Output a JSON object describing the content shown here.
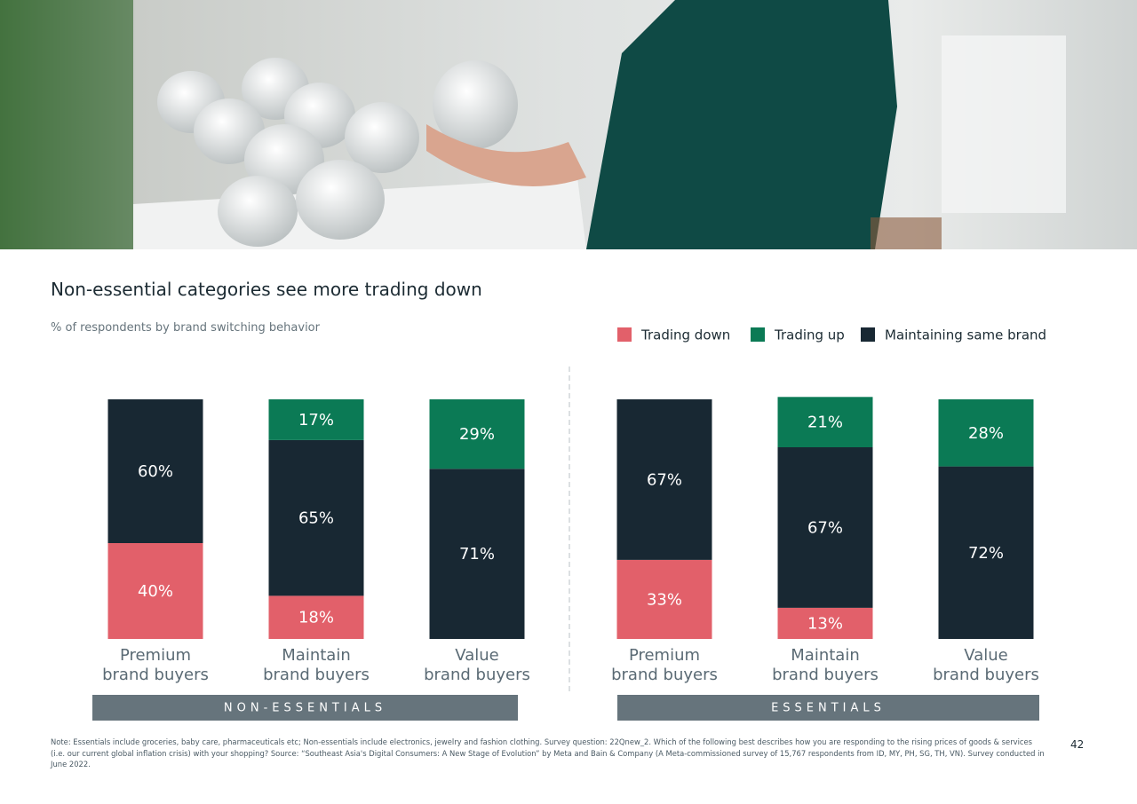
{
  "chart_data": {
    "type": "stacked_bar",
    "title": "Non-essential categories see more trading down",
    "subtitle": "% of respondents by brand switching behavior",
    "groups": [
      {
        "label": "NON-ESSENTIALS",
        "categories": [
          "Premium\nbrand buyers",
          "Maintain\nbrand buyers",
          "Value\nbrand buyers"
        ]
      },
      {
        "label": "ESSENTIALS",
        "categories": [
          "Premium\nbrand buyers",
          "Maintain\nbrand buyers",
          "Value\nbrand buyers"
        ]
      }
    ],
    "series": [
      {
        "name": "Trading down",
        "color": "#e2606a",
        "values": [
          40,
          18,
          null,
          33,
          13,
          null
        ],
        "value_labels": [
          "40%",
          "18%",
          null,
          "33%",
          "13%",
          null
        ]
      },
      {
        "name": "Trading up",
        "color": "#0b7a55",
        "values": [
          null,
          17,
          29,
          null,
          21,
          28
        ],
        "value_labels": [
          null,
          "17%",
          "29%",
          null,
          "21%",
          "28%"
        ]
      },
      {
        "name": "Maintaining same brand",
        "color": "#182833",
        "values": [
          60,
          65,
          71,
          67,
          67,
          72
        ],
        "value_labels": [
          "60%",
          "65%",
          "71%",
          "67%",
          "67%",
          "72%"
        ]
      }
    ],
    "stack_order": [
      "Trading down",
      "Maintaining same brand",
      "Trading up"
    ]
  },
  "note": "Note: Essentials include groceries, baby care, pharmaceuticals etc; Non-essentials include electronics, jewelry and fashion clothing. Survey question: 22Qnew_2. Which of the following best describes how you are responding to the rising prices of goods & services (i.e. our current global inflation crisis) with your shopping? Source: “Southeast Asia's Digital Consumers: A New Stage of Evolution” by Meta and Bain & Company (A Meta-commissioned survey of 15,767 respondents from ID, MY, PH, SG, TH, VN). Survey conducted in June 2022.",
  "page_number": "42"
}
